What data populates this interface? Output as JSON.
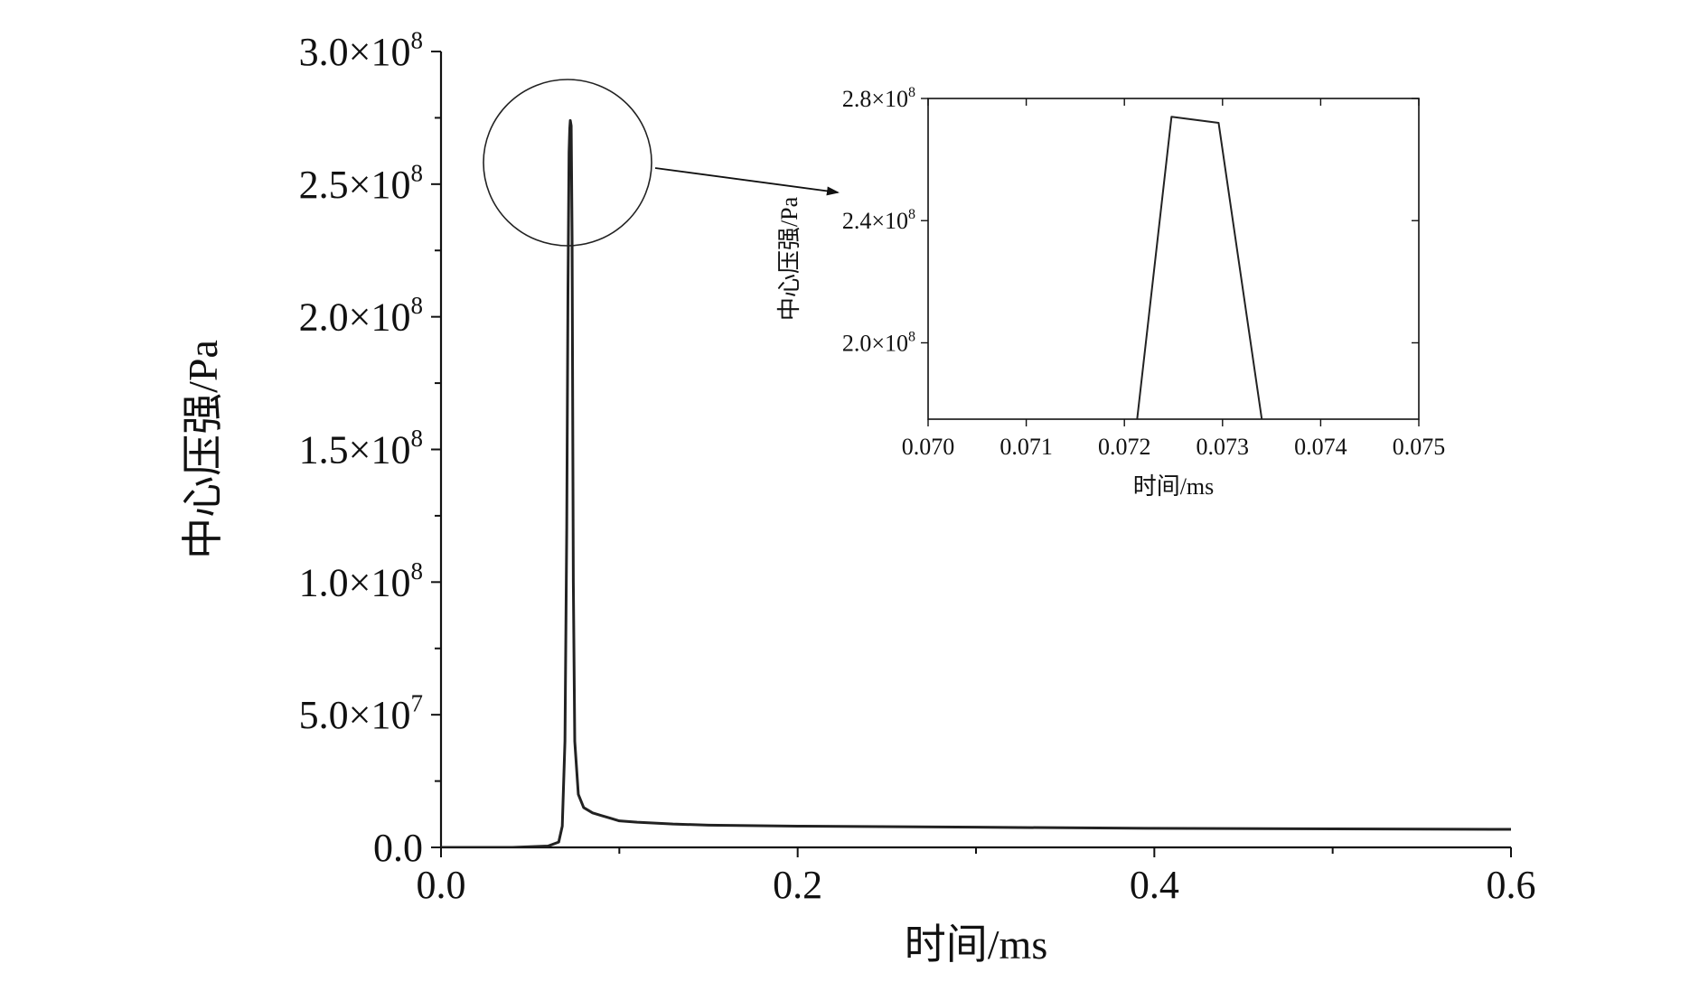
{
  "chart_data": [
    {
      "type": "line",
      "title": "",
      "xlabel": "时间/ms",
      "ylabel": "中心压强/Pa",
      "xlim": [
        0.0,
        0.6
      ],
      "ylim": [
        0,
        300000000
      ],
      "x_ticks": [
        {
          "value": 0.0,
          "label": "0.0"
        },
        {
          "value": 0.2,
          "label": "0.2"
        },
        {
          "value": 0.4,
          "label": "0.4"
        },
        {
          "value": 0.6,
          "label": "0.6"
        }
      ],
      "x_minor_ticks": [
        0.1,
        0.3,
        0.5
      ],
      "y_ticks": [
        {
          "value": 0,
          "mant": "0.0",
          "exp": ""
        },
        {
          "value": 50000000,
          "mant": "5.0×10",
          "exp": "7"
        },
        {
          "value": 100000000,
          "mant": "1.0×10",
          "exp": "8"
        },
        {
          "value": 150000000,
          "mant": "1.5×10",
          "exp": "8"
        },
        {
          "value": 200000000,
          "mant": "2.0×10",
          "exp": "8"
        },
        {
          "value": 250000000,
          "mant": "2.5×10",
          "exp": "8"
        },
        {
          "value": 300000000,
          "mant": "3.0×10",
          "exp": "8"
        }
      ],
      "y_minor_ticks": [
        25000000,
        75000000,
        125000000,
        175000000,
        225000000,
        275000000
      ],
      "grid": false,
      "line_color": "#222222",
      "series": [
        {
          "x": [
            0.0,
            0.02,
            0.04,
            0.06,
            0.066,
            0.068,
            0.0695,
            0.0705,
            0.0712,
            0.0718,
            0.0722,
            0.0725,
            0.073,
            0.0735,
            0.0742,
            0.075,
            0.077,
            0.08,
            0.085,
            0.09,
            0.095,
            0.1,
            0.11,
            0.13,
            0.15,
            0.2,
            0.3,
            0.4,
            0.5,
            0.6
          ],
          "y": [
            0,
            0,
            0,
            500000,
            2000000,
            8000000,
            40000000,
            120000000,
            210000000,
            262000000,
            271000000,
            274000000,
            272000000,
            230000000,
            100000000,
            40000000,
            20000000,
            15000000,
            13000000,
            12000000,
            11000000,
            10000000,
            9500000,
            8800000,
            8400000,
            8000000,
            7600000,
            7200000,
            7000000,
            6800000
          ]
        }
      ]
    },
    {
      "type": "line",
      "title": "",
      "xlabel": "时间/ms",
      "ylabel": "中心压强/Pa",
      "xlim": [
        0.07,
        0.075
      ],
      "ylim": [
        175000000,
        280000000
      ],
      "x_ticks": [
        {
          "value": 0.07,
          "label": "0.070"
        },
        {
          "value": 0.071,
          "label": "0.071"
        },
        {
          "value": 0.072,
          "label": "0.072"
        },
        {
          "value": 0.073,
          "label": "0.073"
        },
        {
          "value": 0.074,
          "label": "0.074"
        },
        {
          "value": 0.075,
          "label": "0.075"
        }
      ],
      "y_ticks": [
        {
          "value": 200000000,
          "mant": "2.0×10",
          "exp": "8"
        },
        {
          "value": 240000000,
          "mant": "2.4×10",
          "exp": "8"
        },
        {
          "value": 280000000,
          "mant": "2.8×10",
          "exp": "8"
        }
      ],
      "grid": false,
      "line_color": "#222222",
      "series": [
        {
          "x": [
            0.07213,
            0.07248,
            0.07296,
            0.0734
          ],
          "y": [
            175000000,
            274000000,
            272000000,
            175000000
          ]
        }
      ]
    }
  ]
}
